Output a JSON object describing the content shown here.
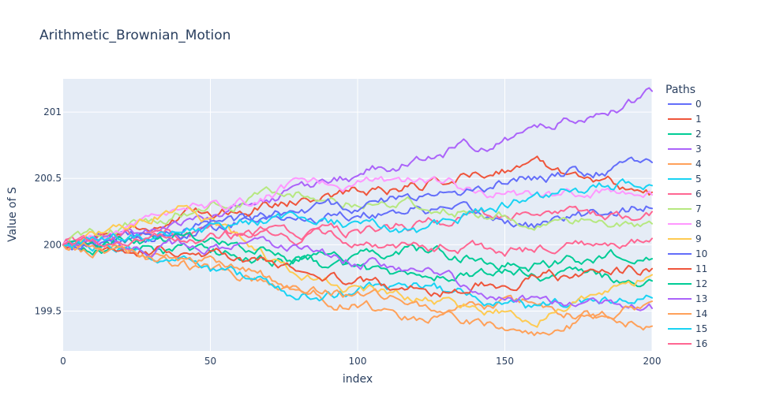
{
  "chart_data": {
    "type": "line",
    "title": "Arithmetic_Brownian_Motion",
    "xlabel": "index",
    "ylabel": "Value of S",
    "xlim": [
      0,
      200
    ],
    "ylim": [
      199.2,
      201.25
    ],
    "x_ticks": [
      0,
      50,
      100,
      150,
      200
    ],
    "y_ticks": [
      199.5,
      200,
      200.5,
      201
    ],
    "y_tick_labels": [
      "199.5",
      "200",
      "200.5",
      "201"
    ],
    "x_tick_labels": [
      "0",
      "50",
      "100",
      "150",
      "200"
    ],
    "grid": true,
    "legend_title": "Paths",
    "legend_position": "right",
    "n_steps": 200,
    "series": [
      {
        "name": "0",
        "color": "#636efa",
        "anchors": [
          [
            0,
            200
          ],
          [
            40,
            200.12
          ],
          [
            80,
            200.2
          ],
          [
            120,
            200.28
          ],
          [
            160,
            200.15
          ],
          [
            200,
            200.3
          ]
        ]
      },
      {
        "name": "1",
        "color": "#EF553B",
        "anchors": [
          [
            0,
            200
          ],
          [
            40,
            200.2
          ],
          [
            80,
            200.35
          ],
          [
            120,
            200.45
          ],
          [
            160,
            200.62
          ],
          [
            200,
            200.38
          ]
        ]
      },
      {
        "name": "2",
        "color": "#00cc96",
        "anchors": [
          [
            0,
            200
          ],
          [
            40,
            199.95
          ],
          [
            80,
            199.88
          ],
          [
            120,
            199.75
          ],
          [
            160,
            199.8
          ],
          [
            200,
            199.7
          ]
        ]
      },
      {
        "name": "3",
        "color": "#ab63fa",
        "anchors": [
          [
            0,
            200
          ],
          [
            40,
            200.15
          ],
          [
            80,
            200.4
          ],
          [
            120,
            200.65
          ],
          [
            160,
            200.85
          ],
          [
            200,
            201.15
          ]
        ]
      },
      {
        "name": "4",
        "color": "#FFA15A",
        "anchors": [
          [
            0,
            200
          ],
          [
            40,
            199.85
          ],
          [
            80,
            199.65
          ],
          [
            120,
            199.45
          ],
          [
            160,
            199.55
          ],
          [
            200,
            199.38
          ]
        ]
      },
      {
        "name": "5",
        "color": "#19d3f3",
        "anchors": [
          [
            0,
            200
          ],
          [
            40,
            199.9
          ],
          [
            80,
            199.6
          ],
          [
            120,
            199.7
          ],
          [
            160,
            199.5
          ],
          [
            200,
            199.62
          ]
        ]
      },
      {
        "name": "6",
        "color": "#FF6692",
        "anchors": [
          [
            0,
            200
          ],
          [
            40,
            200.1
          ],
          [
            80,
            200.05
          ],
          [
            120,
            200.15
          ],
          [
            160,
            200.2
          ],
          [
            200,
            200.25
          ]
        ]
      },
      {
        "name": "7",
        "color": "#B6E880",
        "anchors": [
          [
            0,
            200
          ],
          [
            40,
            200.25
          ],
          [
            80,
            200.4
          ],
          [
            120,
            200.3
          ],
          [
            160,
            200.2
          ],
          [
            200,
            200.1
          ]
        ]
      },
      {
        "name": "8",
        "color": "#FF97FF",
        "anchors": [
          [
            0,
            200
          ],
          [
            40,
            200.2
          ],
          [
            80,
            200.45
          ],
          [
            120,
            200.5
          ],
          [
            160,
            200.35
          ],
          [
            200,
            200.4
          ]
        ]
      },
      {
        "name": "9",
        "color": "#FECB52",
        "anchors": [
          [
            0,
            200
          ],
          [
            40,
            200.3
          ],
          [
            80,
            199.75
          ],
          [
            120,
            199.6
          ],
          [
            160,
            199.45
          ],
          [
            200,
            199.75
          ]
        ]
      },
      {
        "name": "10",
        "color": "#636efa",
        "anchors": [
          [
            0,
            200
          ],
          [
            40,
            200.08
          ],
          [
            80,
            200.25
          ],
          [
            120,
            200.35
          ],
          [
            160,
            200.5
          ],
          [
            200,
            200.62
          ]
        ]
      },
      {
        "name": "11",
        "color": "#EF553B",
        "anchors": [
          [
            0,
            200
          ],
          [
            40,
            199.95
          ],
          [
            80,
            199.85
          ],
          [
            120,
            199.65
          ],
          [
            160,
            199.75
          ],
          [
            200,
            199.8
          ]
        ]
      },
      {
        "name": "12",
        "color": "#00cc96",
        "anchors": [
          [
            0,
            200
          ],
          [
            40,
            200.05
          ],
          [
            80,
            199.9
          ],
          [
            120,
            199.95
          ],
          [
            160,
            199.85
          ],
          [
            200,
            199.95
          ]
        ]
      },
      {
        "name": "13",
        "color": "#ab63fa",
        "anchors": [
          [
            0,
            200
          ],
          [
            40,
            200.0
          ],
          [
            80,
            199.95
          ],
          [
            120,
            199.8
          ],
          [
            160,
            199.6
          ],
          [
            200,
            199.55
          ]
        ]
      },
      {
        "name": "14",
        "color": "#FFA15A",
        "anchors": [
          [
            0,
            200
          ],
          [
            40,
            199.9
          ],
          [
            80,
            199.7
          ],
          [
            120,
            199.55
          ],
          [
            160,
            199.35
          ],
          [
            200,
            199.55
          ]
        ]
      },
      {
        "name": "15",
        "color": "#19d3f3",
        "anchors": [
          [
            0,
            200
          ],
          [
            40,
            200.1
          ],
          [
            80,
            200.2
          ],
          [
            120,
            200.1
          ],
          [
            160,
            200.35
          ],
          [
            200,
            200.5
          ]
        ]
      },
      {
        "name": "16",
        "color": "#FF6692",
        "anchors": [
          [
            0,
            200
          ],
          [
            40,
            200.05
          ],
          [
            80,
            200.1
          ],
          [
            120,
            200.0
          ],
          [
            160,
            199.95
          ],
          [
            200,
            200.05
          ]
        ]
      }
    ]
  }
}
